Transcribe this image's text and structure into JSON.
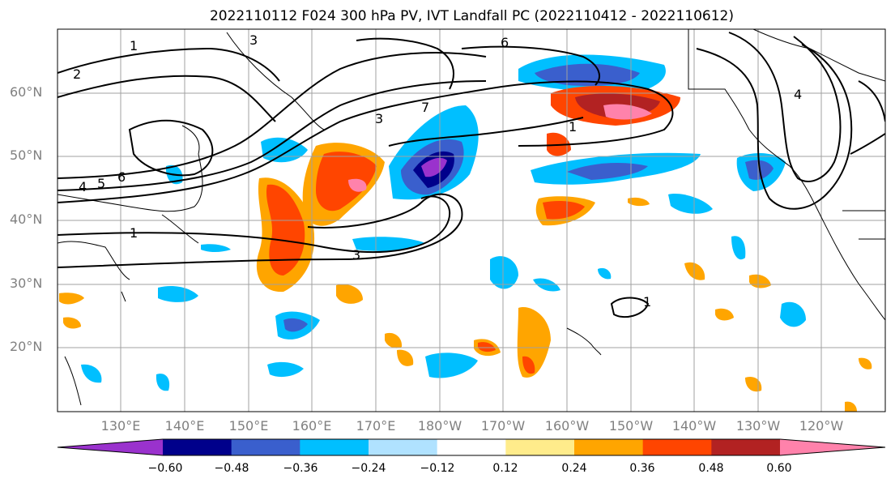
{
  "title": "2022110112 F024 300 hPa PV, IVT Landfall PC (2022110412 - 2022110612)",
  "lat_labels": [
    "60°N",
    "50°N",
    "40°N",
    "30°N",
    "20°N"
  ],
  "lon_labels": [
    "130°E",
    "140°E",
    "150°E",
    "160°E",
    "170°E",
    "180°W",
    "170°W",
    "160°W",
    "150°W",
    "140°W",
    "130°W",
    "120°W"
  ],
  "contour_labels": [
    "1",
    "2",
    "3",
    "4",
    "5",
    "6",
    "7",
    "1",
    "3",
    "1",
    "4",
    "1",
    "3",
    "6"
  ],
  "colorbar": {
    "colors": [
      "#9a32cd",
      "#00008b",
      "#3a5fcd",
      "#00bfff",
      "#b0e2ff",
      "#ffffff",
      "#ffec8b",
      "#ffa500",
      "#ff4500",
      "#b22222",
      "#ff82ab"
    ],
    "tick_labels": [
      "−0.60",
      "−0.48",
      "−0.36",
      "−0.24",
      "−0.12",
      "0.12",
      "0.24",
      "0.36",
      "0.48",
      "0.60"
    ]
  }
}
